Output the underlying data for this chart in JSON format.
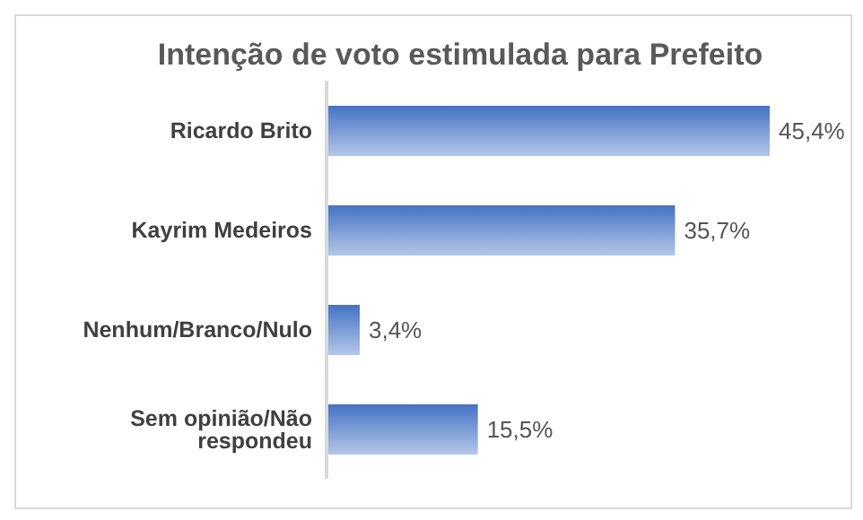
{
  "chart_data": {
    "type": "bar",
    "orientation": "horizontal",
    "title": "Intenção de voto estimulada para Prefeito",
    "categories": [
      "Ricardo Brito",
      "Kayrim Medeiros",
      "Nenhum/Branco/Nulo",
      "Sem opinião/Não respondeu"
    ],
    "values": [
      45.4,
      35.7,
      3.4,
      15.5
    ],
    "value_labels": [
      "45,4%",
      "35,7%",
      "3,4%",
      "15,5%"
    ],
    "color": "#4472c4",
    "grid": false,
    "legend": false
  }
}
